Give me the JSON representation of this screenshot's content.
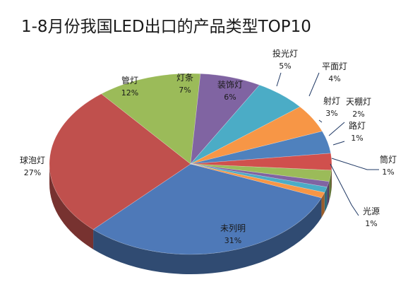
{
  "chart_data": {
    "type": "pie",
    "title": "1-8月份我国LED出口的产品类型TOP10",
    "slices": [
      {
        "label": "未列明",
        "pct_label": "31%",
        "value": 31,
        "color": "#4e79b8"
      },
      {
        "label": "球泡灯",
        "pct_label": "27%",
        "value": 27,
        "color": "#c0504d"
      },
      {
        "label": "管灯",
        "pct_label": "12%",
        "value": 12,
        "color": "#9bbb59"
      },
      {
        "label": "灯条",
        "pct_label": "7%",
        "value": 7,
        "color": "#8064a2"
      },
      {
        "label": "装饰灯",
        "pct_label": "6%",
        "value": 6,
        "color": "#4bacc6"
      },
      {
        "label": "投光灯",
        "pct_label": "5%",
        "value": 5,
        "color": "#f79646"
      },
      {
        "label": "平面灯",
        "pct_label": "4%",
        "value": 4,
        "color": "#4f81bd"
      },
      {
        "label": "射灯",
        "pct_label": "3%",
        "value": 3,
        "color": "#d0504d"
      },
      {
        "label": "天棚灯",
        "pct_label": "2%",
        "value": 2,
        "color": "#9bbb59"
      },
      {
        "label": "路灯",
        "pct_label": "1%",
        "value": 1,
        "color": "#8064a2"
      },
      {
        "label": "筒灯",
        "pct_label": "1%",
        "value": 1,
        "color": "#4bacc6"
      },
      {
        "label": "光源",
        "pct_label": "1%",
        "value": 1,
        "color": "#f79646"
      }
    ]
  }
}
